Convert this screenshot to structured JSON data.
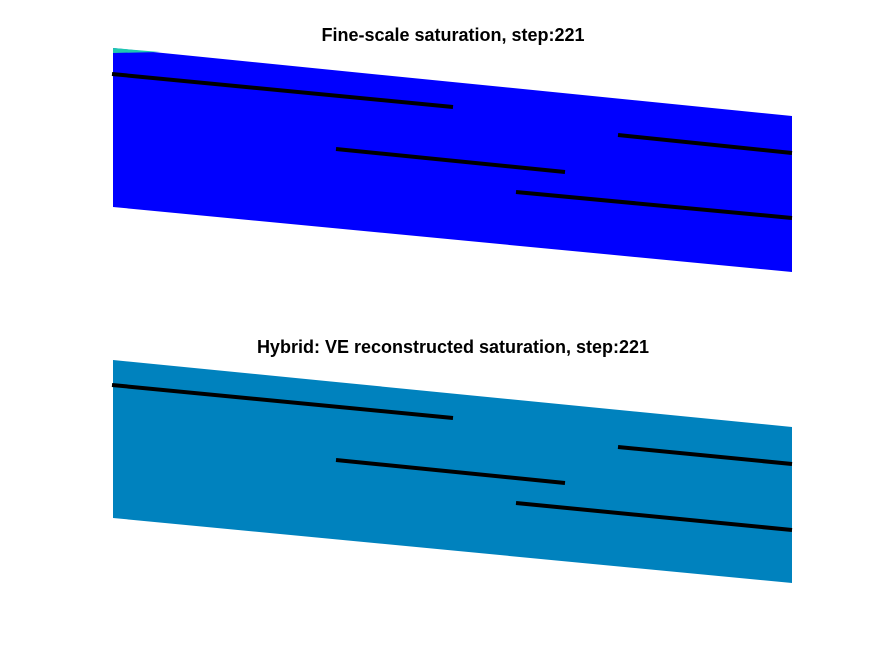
{
  "figure": {
    "panels": [
      {
        "title": "Fine-scale saturation, step:221",
        "fill_color": "#0000ff",
        "corner_color": "#1fc8b0",
        "fault_count": 4
      },
      {
        "title": "Hybrid: VE reconstructed saturation, step:221",
        "fill_color": "#0082be",
        "fault_count": 4
      }
    ],
    "fault_color": "#000000",
    "background_color": "#ffffff"
  }
}
